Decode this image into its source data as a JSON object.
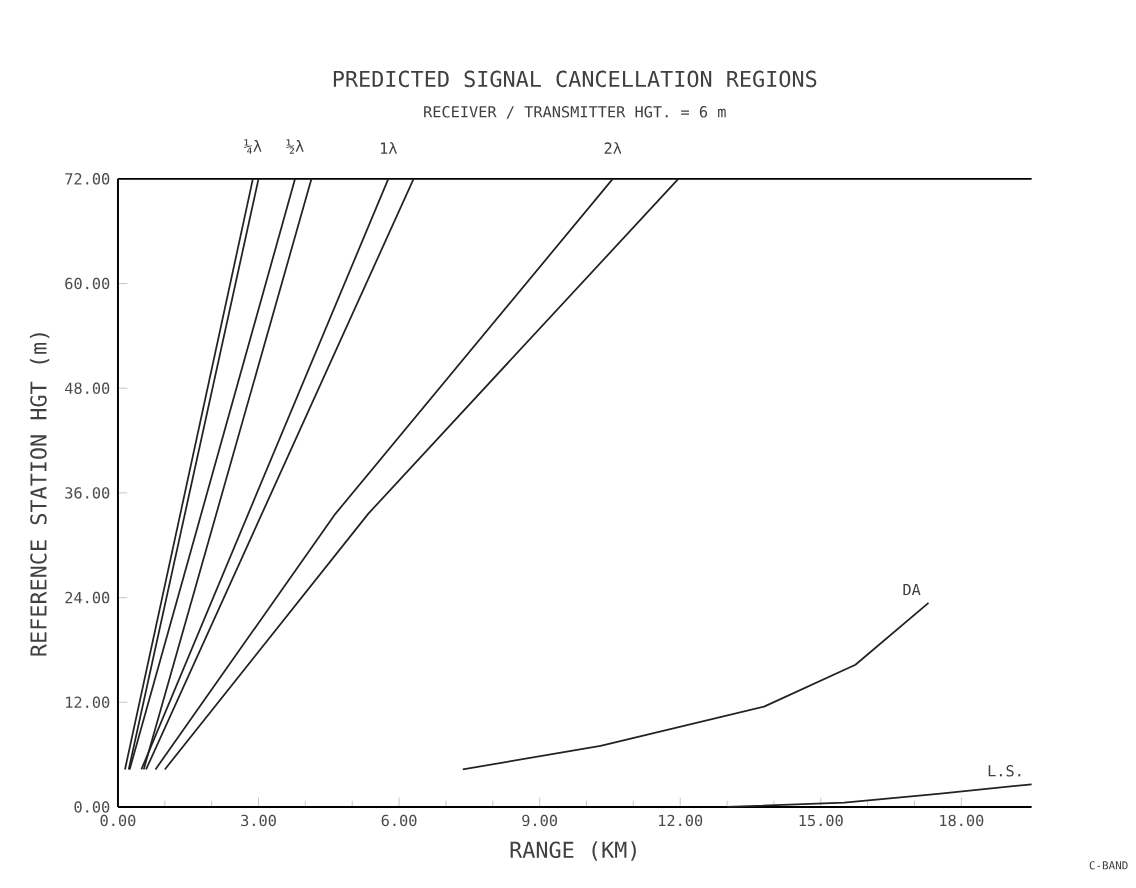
{
  "chart_data": {
    "type": "line",
    "title": "PREDICTED SIGNAL CANCELLATION REGIONS",
    "subtitle": "RECEIVER / TRANSMITTER HGT. = 6 m",
    "xlabel": "RANGE (KM)",
    "ylabel": "REFERENCE STATION HGT (m)",
    "xlim": [
      0,
      19.5
    ],
    "ylim": [
      0,
      72
    ],
    "xticks": [
      {
        "value": 0,
        "label": "0.00"
      },
      {
        "value": 3,
        "label": "3.00"
      },
      {
        "value": 6,
        "label": "6.00"
      },
      {
        "value": 9,
        "label": "9.00"
      },
      {
        "value": 12,
        "label": "12.00"
      },
      {
        "value": 15,
        "label": "15.00"
      },
      {
        "value": 18,
        "label": "18.00"
      }
    ],
    "yticks": [
      {
        "value": 0,
        "label": "0.00"
      },
      {
        "value": 12,
        "label": "12.00"
      },
      {
        "value": 24,
        "label": "24.00"
      },
      {
        "value": 36,
        "label": "36.00"
      },
      {
        "value": 48,
        "label": "48.00"
      },
      {
        "value": 60,
        "label": "60.00"
      },
      {
        "value": 72,
        "label": "72.00"
      }
    ],
    "grid": false,
    "legend": false,
    "marker": "none",
    "line_style": "solid",
    "series": [
      {
        "name": "¼λ",
        "color": "#222222",
        "x": [
          0.15,
          2.88
        ],
        "values": [
          4.3,
          72
        ]
      },
      {
        "color": "#222222",
        "x": [
          0.23,
          3.0
        ],
        "values": [
          4.3,
          72
        ]
      },
      {
        "name": "½λ",
        "color": "#222222",
        "x": [
          0.25,
          3.78
        ],
        "values": [
          4.3,
          72
        ]
      },
      {
        "color": "#222222",
        "x": [
          0.55,
          4.13
        ],
        "values": [
          4.3,
          72
        ]
      },
      {
        "name": "1λ",
        "color": "#222222",
        "x": [
          0.5,
          5.77
        ],
        "values": [
          4.3,
          72
        ]
      },
      {
        "color": "#222222",
        "x": [
          0.6,
          6.31
        ],
        "values": [
          4.3,
          72
        ]
      },
      {
        "name": "2λ",
        "color": "#222222",
        "x": [
          0.8,
          4.64,
          10.56
        ],
        "values": [
          4.3,
          33.6,
          72
        ]
      },
      {
        "color": "#222222",
        "x": [
          1.0,
          5.34,
          11.96
        ],
        "values": [
          4.3,
          33.6,
          72
        ]
      },
      {
        "name": "DA",
        "color": "#222222",
        "x": [
          7.36,
          10.3,
          13.79,
          15.74,
          17.3
        ],
        "values": [
          4.3,
          7.0,
          11.5,
          16.3,
          23.4
        ]
      },
      {
        "name": "L.S.",
        "color": "#222222",
        "x": [
          13.0,
          15.5,
          17.5,
          19.5
        ],
        "values": [
          0,
          0.5,
          1.5,
          2.6
        ]
      }
    ],
    "annotations": [
      "C-BAND"
    ]
  }
}
